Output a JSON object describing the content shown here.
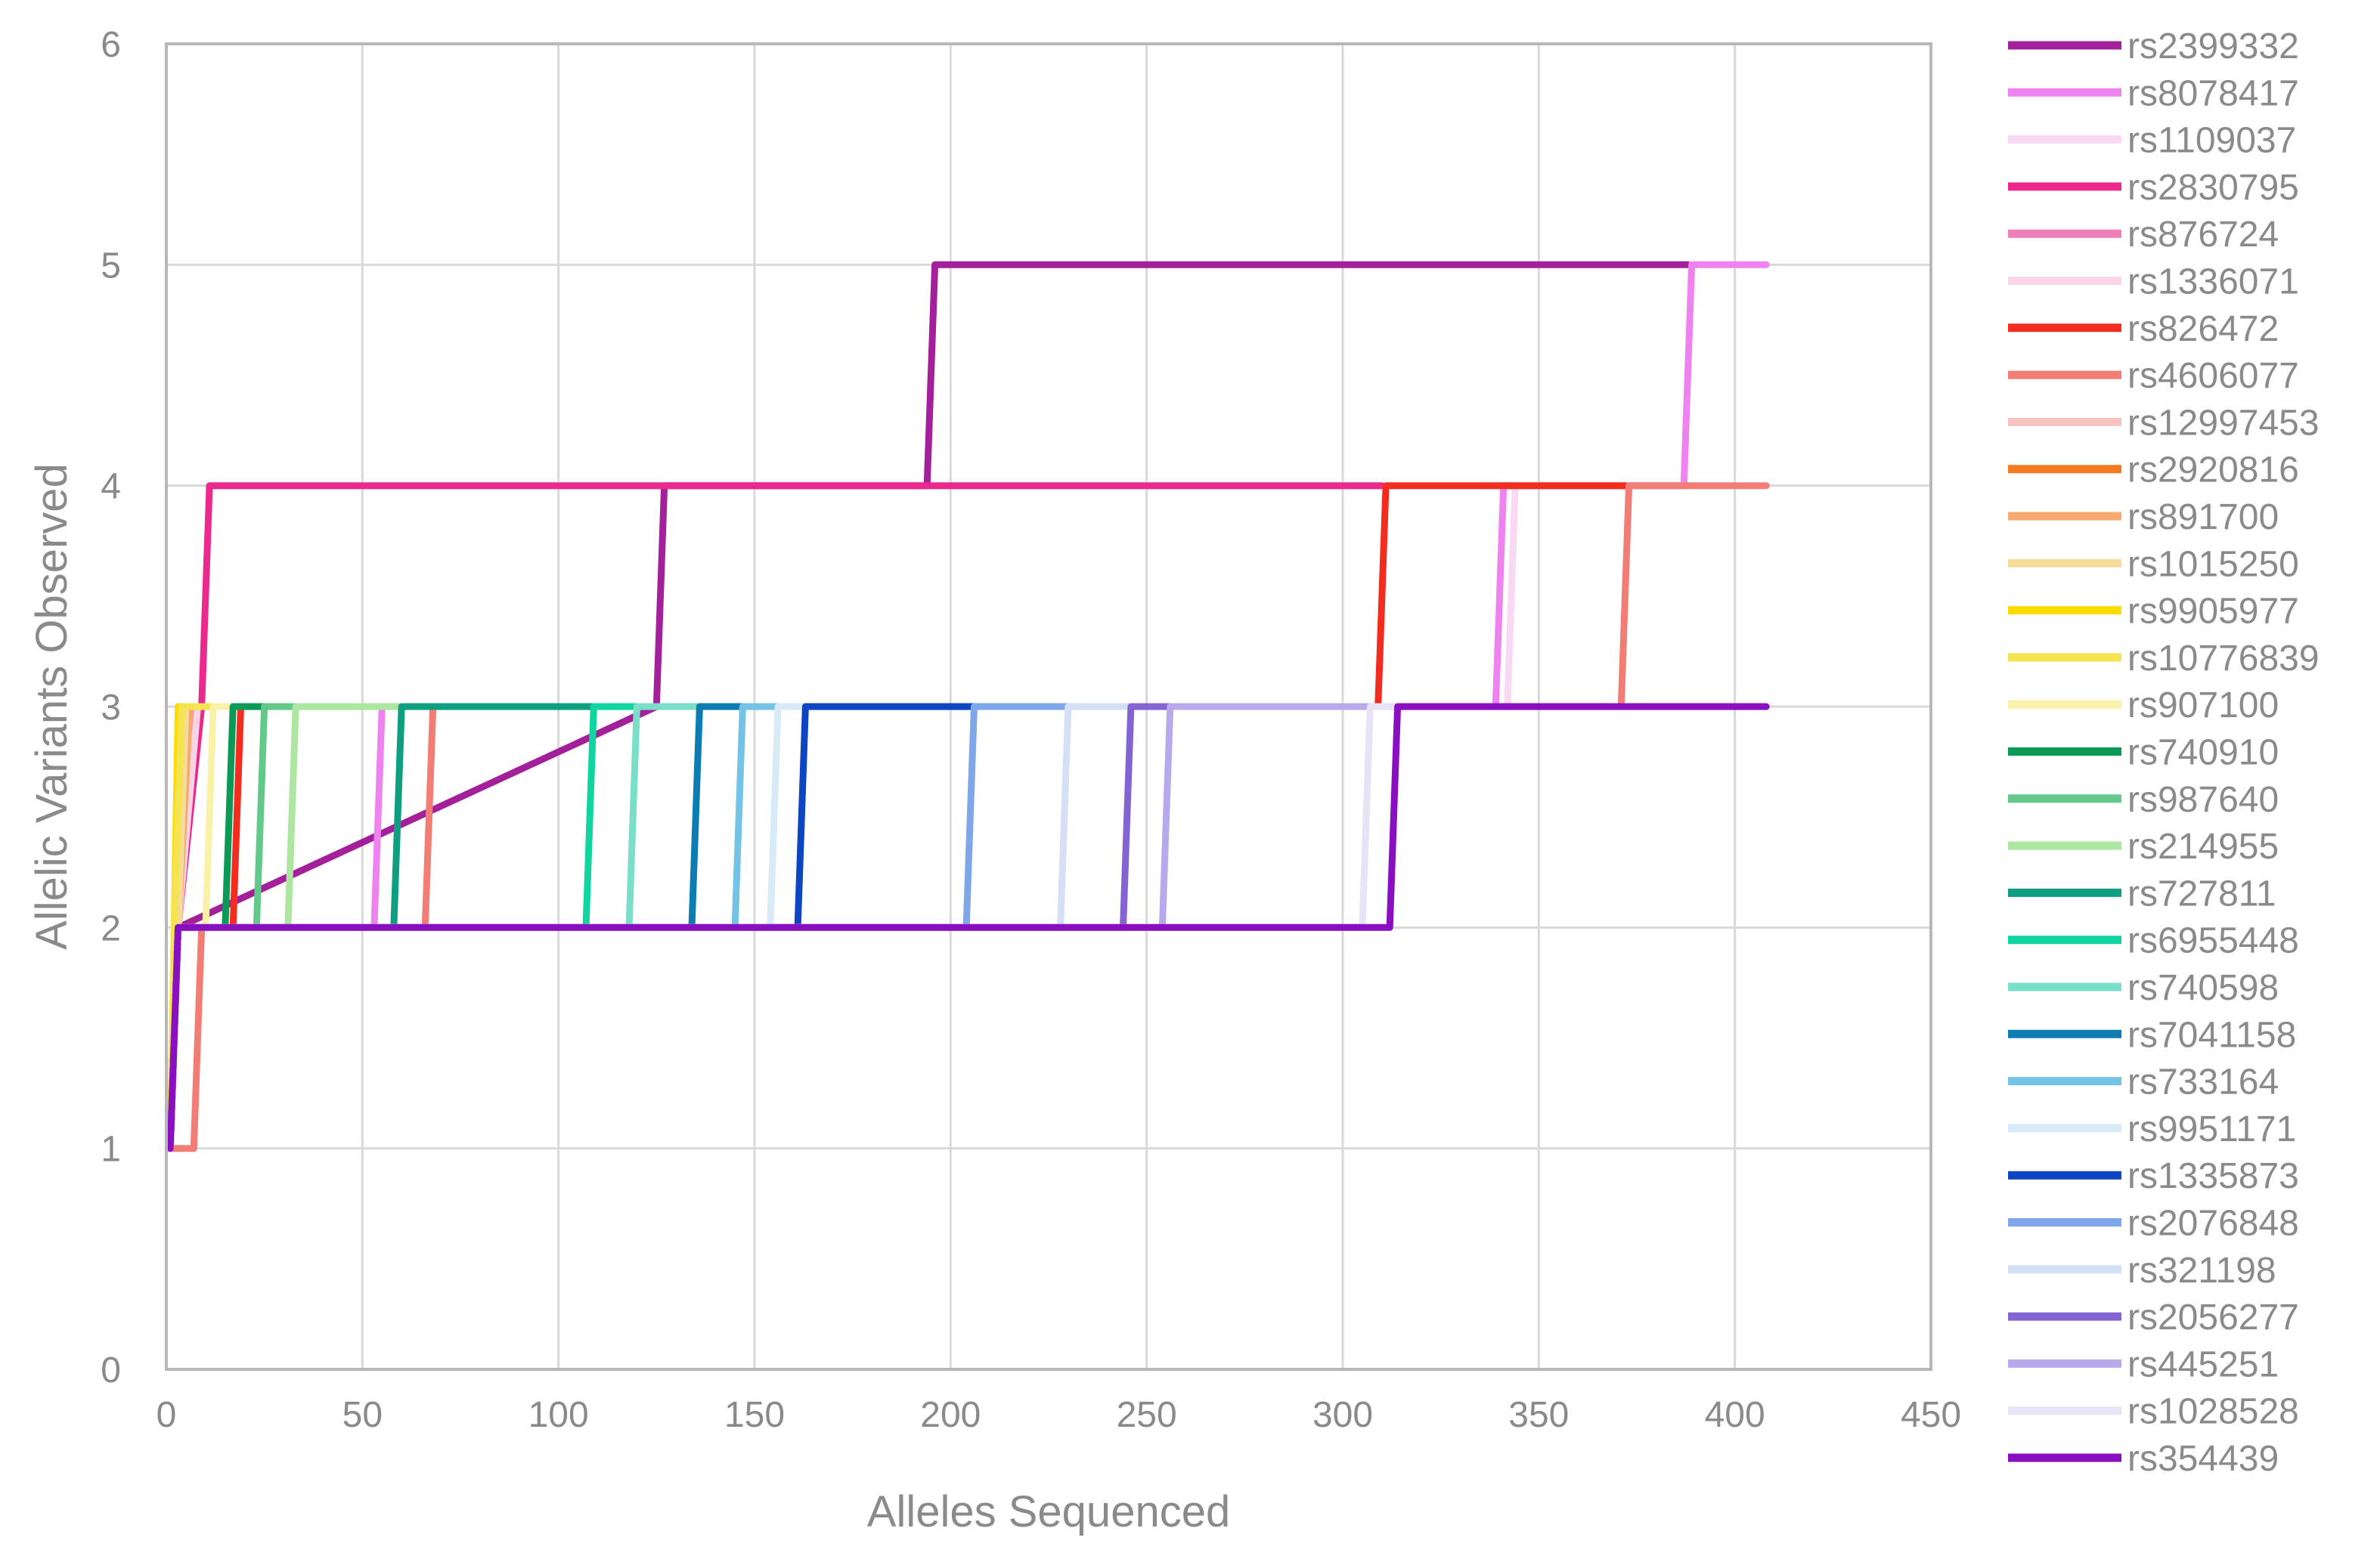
{
  "chart_data": {
    "type": "line",
    "step": true,
    "title": "",
    "xlabel": "Alleles Sequenced",
    "ylabel": "Allelic Variants Observed",
    "xlim": [
      0,
      450
    ],
    "ylim": [
      0,
      6
    ],
    "xticks": [
      0,
      50,
      100,
      150,
      200,
      250,
      300,
      350,
      400,
      450
    ],
    "yticks": [
      0,
      1,
      2,
      3,
      4,
      5,
      6
    ],
    "grid": true,
    "legend_position": "right",
    "series": [
      {
        "name": "rs2399332",
        "color": "#A4209A",
        "points": [
          [
            1,
            1
          ],
          [
            3,
            2
          ],
          [
            125,
            3
          ],
          [
            127,
            4
          ],
          [
            194,
            4
          ],
          [
            196,
            5
          ],
          [
            388,
            5
          ]
        ]
      },
      {
        "name": "rs8078417",
        "color": "#EE82EE",
        "points": [
          [
            1,
            1
          ],
          [
            3,
            2
          ],
          [
            53,
            2
          ],
          [
            55,
            3
          ],
          [
            339,
            3
          ],
          [
            341,
            4
          ],
          [
            387,
            4
          ],
          [
            389,
            5
          ],
          [
            408,
            5
          ]
        ]
      },
      {
        "name": "rs1109037",
        "color": "#F9D8F4",
        "points": [
          [
            1,
            1
          ],
          [
            3,
            2
          ],
          [
            7,
            3
          ],
          [
            342,
            3
          ],
          [
            344,
            4
          ],
          [
            350,
            4
          ]
        ]
      },
      {
        "name": "rs2830795",
        "color": "#EC2A8E",
        "points": [
          [
            1,
            1
          ],
          [
            3,
            2
          ],
          [
            9,
            3
          ],
          [
            11,
            4
          ],
          [
            310,
            4
          ]
        ]
      },
      {
        "name": "rs876724",
        "color": "#EE7FB8",
        "points": [
          [
            1,
            1
          ],
          [
            3,
            2
          ],
          [
            7,
            3
          ],
          [
            30,
            3
          ]
        ]
      },
      {
        "name": "rs1336071",
        "color": "#F9D4E4",
        "points": [
          [
            1,
            1
          ],
          [
            3,
            2
          ],
          [
            8,
            3
          ],
          [
            40,
            3
          ]
        ]
      },
      {
        "name": "rs826472",
        "color": "#F22C1E",
        "points": [
          [
            1,
            1
          ],
          [
            3,
            2
          ],
          [
            17,
            2
          ],
          [
            19,
            3
          ],
          [
            309,
            3
          ],
          [
            311,
            4
          ],
          [
            372,
            4
          ]
        ]
      },
      {
        "name": "rs4606077",
        "color": "#F27D74",
        "points": [
          [
            1,
            1
          ],
          [
            7,
            1
          ],
          [
            9,
            2
          ],
          [
            66,
            2
          ],
          [
            68,
            3
          ],
          [
            371,
            3
          ],
          [
            373,
            4
          ],
          [
            408,
            4
          ]
        ]
      },
      {
        "name": "rs12997453",
        "color": "#F6C3BE",
        "points": [
          [
            1,
            1
          ],
          [
            3,
            2
          ],
          [
            6,
            3
          ],
          [
            20,
            3
          ]
        ]
      },
      {
        "name": "rs2920816",
        "color": "#F47920",
        "points": [
          [
            1,
            1
          ],
          [
            3,
            2
          ],
          [
            5,
            3
          ],
          [
            12,
            3
          ]
        ]
      },
      {
        "name": "rs891700",
        "color": "#F7A96E",
        "points": [
          [
            1,
            1
          ],
          [
            3,
            2
          ],
          [
            6,
            3
          ],
          [
            15,
            3
          ]
        ]
      },
      {
        "name": "rs1015250",
        "color": "#F6DC9A",
        "points": [
          [
            1,
            1
          ],
          [
            3,
            2
          ],
          [
            5,
            3
          ],
          [
            14,
            3
          ]
        ]
      },
      {
        "name": "rs9905977",
        "color": "#FFDC00",
        "points": [
          [
            1,
            1
          ],
          [
            2,
            2
          ],
          [
            3,
            3
          ],
          [
            10,
            3
          ]
        ]
      },
      {
        "name": "rs10776839",
        "color": "#F5E44F",
        "points": [
          [
            1,
            1
          ],
          [
            2,
            2
          ],
          [
            4,
            3
          ],
          [
            12,
            3
          ]
        ]
      },
      {
        "name": "rs907100",
        "color": "#FAF1A8",
        "points": [
          [
            1,
            1
          ],
          [
            3,
            2
          ],
          [
            10,
            2
          ],
          [
            12,
            3
          ],
          [
            16,
            3
          ]
        ]
      },
      {
        "name": "rs740910",
        "color": "#0B9A55",
        "points": [
          [
            1,
            1
          ],
          [
            3,
            2
          ],
          [
            15,
            2
          ],
          [
            17,
            3
          ],
          [
            30,
            3
          ]
        ]
      },
      {
        "name": "rs987640",
        "color": "#62C98B",
        "points": [
          [
            1,
            1
          ],
          [
            3,
            2
          ],
          [
            23,
            2
          ],
          [
            25,
            3
          ],
          [
            40,
            3
          ]
        ]
      },
      {
        "name": "rs214955",
        "color": "#ACE6A1",
        "points": [
          [
            1,
            1
          ],
          [
            3,
            2
          ],
          [
            31,
            2
          ],
          [
            33,
            3
          ],
          [
            60,
            3
          ]
        ]
      },
      {
        "name": "rs727811",
        "color": "#0E9E80",
        "points": [
          [
            1,
            1
          ],
          [
            3,
            2
          ],
          [
            58,
            2
          ],
          [
            60,
            3
          ],
          [
            120,
            3
          ]
        ]
      },
      {
        "name": "rs6955448",
        "color": "#10D5A0",
        "points": [
          [
            1,
            1
          ],
          [
            3,
            2
          ],
          [
            107,
            2
          ],
          [
            109,
            3
          ],
          [
            130,
            3
          ]
        ]
      },
      {
        "name": "rs740598",
        "color": "#7ADFC8",
        "points": [
          [
            1,
            1
          ],
          [
            3,
            2
          ],
          [
            118,
            2
          ],
          [
            120,
            3
          ],
          [
            145,
            3
          ]
        ]
      },
      {
        "name": "rs7041158",
        "color": "#0B7DB3",
        "points": [
          [
            1,
            1
          ],
          [
            3,
            2
          ],
          [
            134,
            2
          ],
          [
            136,
            3
          ],
          [
            160,
            3
          ]
        ]
      },
      {
        "name": "rs733164",
        "color": "#74C3E6",
        "points": [
          [
            1,
            1
          ],
          [
            3,
            2
          ],
          [
            145,
            2
          ],
          [
            147,
            3
          ],
          [
            165,
            3
          ]
        ]
      },
      {
        "name": "rs9951171",
        "color": "#D6EBF7",
        "points": [
          [
            1,
            1
          ],
          [
            3,
            2
          ],
          [
            154,
            2
          ],
          [
            156,
            3
          ],
          [
            170,
            3
          ]
        ]
      },
      {
        "name": "rs1335873",
        "color": "#0E45C2",
        "points": [
          [
            1,
            1
          ],
          [
            3,
            2
          ],
          [
            161,
            2
          ],
          [
            163,
            3
          ],
          [
            245,
            3
          ]
        ]
      },
      {
        "name": "rs2076848",
        "color": "#7FA6E8",
        "points": [
          [
            1,
            1
          ],
          [
            3,
            2
          ],
          [
            204,
            2
          ],
          [
            206,
            3
          ],
          [
            250,
            3
          ]
        ]
      },
      {
        "name": "rs321198",
        "color": "#D5E0F7",
        "points": [
          [
            1,
            1
          ],
          [
            3,
            2
          ],
          [
            228,
            2
          ],
          [
            230,
            3
          ],
          [
            255,
            3
          ]
        ]
      },
      {
        "name": "rs2056277",
        "color": "#8464D2",
        "points": [
          [
            1,
            1
          ],
          [
            3,
            2
          ],
          [
            244,
            2
          ],
          [
            246,
            3
          ],
          [
            300,
            3
          ]
        ]
      },
      {
        "name": "rs445251",
        "color": "#B8A8EC",
        "points": [
          [
            1,
            1
          ],
          [
            3,
            2
          ],
          [
            254,
            2
          ],
          [
            256,
            3
          ],
          [
            310,
            3
          ]
        ]
      },
      {
        "name": "rs1028528",
        "color": "#E6E3F7",
        "points": [
          [
            1,
            1
          ],
          [
            3,
            2
          ],
          [
            305,
            2
          ],
          [
            307,
            3
          ],
          [
            320,
            3
          ]
        ]
      },
      {
        "name": "rs354439",
        "color": "#8A0FC0",
        "points": [
          [
            1,
            1
          ],
          [
            3,
            2
          ],
          [
            312,
            2
          ],
          [
            314,
            3
          ],
          [
            408,
            3
          ]
        ]
      }
    ]
  }
}
